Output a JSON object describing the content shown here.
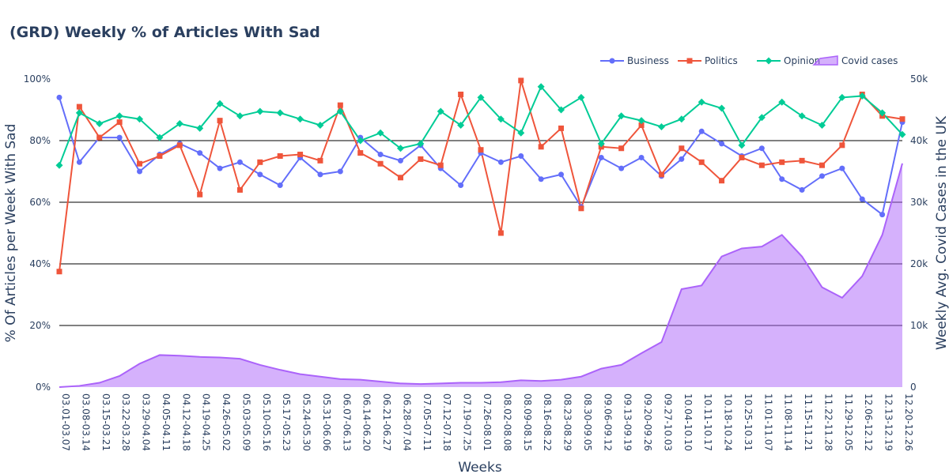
{
  "chart_data": {
    "type": "line",
    "title": "(GRD) Weekly % of Articles With Sad",
    "xlabel": "Weeks",
    "ylabel": "% Of Articles per Week With Sad",
    "y2label": "Weekly Avg. Covid Cases in the UK",
    "ylim": [
      0,
      100
    ],
    "y2lim": [
      0,
      50000
    ],
    "yticks": [
      "0%",
      "20%",
      "40%",
      "60%",
      "80%",
      "100%"
    ],
    "y2ticks": [
      "0",
      "10k",
      "20k",
      "30k",
      "40k",
      "50k"
    ],
    "legend_position": "top-right",
    "categories": [
      "03.01-03.07",
      "03.08-03.14",
      "03.15-03.21",
      "03.22-03.28",
      "03.29-04.04",
      "04.05-04.11",
      "04.12-04.18",
      "04.19-04.25",
      "04.26-05.02",
      "05.03-05.09",
      "05.10-05.16",
      "05.17-05.23",
      "05.24-05.30",
      "05.31-06.06",
      "06.07-06.13",
      "06.14-06.20",
      "06.21-06.27",
      "06.28-07.04",
      "07.05-07.11",
      "07.12-07.18",
      "07.19-07.25",
      "07.26-08.01",
      "08.02-08.08",
      "08.09-08.15",
      "08.16-08.22",
      "08.23-08.29",
      "08.30-09.05",
      "09.06-09.12",
      "09.13-09.19",
      "09.20-09.26",
      "09.27-10.03",
      "10.04-10.10",
      "10.11-10.17",
      "10.18-10.24",
      "10.25-10.31",
      "11.01-11.07",
      "11.08-11.14",
      "11.15-11.21",
      "11.22-11.28",
      "11.29-12.05",
      "12.06-12.12",
      "12.13-12.19",
      "12.20-12.26"
    ],
    "series": [
      {
        "name": "Business",
        "color": "#636efa",
        "marker": "circle",
        "axis": "y",
        "values": [
          94,
          73,
          81,
          81,
          70,
          75.5,
          79,
          76,
          71,
          73,
          69,
          65.5,
          74.5,
          69,
          70,
          81,
          75.5,
          73.5,
          78.5,
          71,
          65.5,
          76,
          73,
          75,
          67.5,
          69,
          58.5,
          74.5,
          71,
          74.5,
          68.5,
          74,
          83,
          79,
          75,
          77.5,
          67.5,
          64,
          68.5,
          71,
          61,
          56,
          86
        ]
      },
      {
        "name": "Politics",
        "color": "#ef553b",
        "marker": "square",
        "axis": "y",
        "values": [
          37.5,
          91,
          81,
          86,
          72.5,
          75,
          78.5,
          62.5,
          86.5,
          64,
          73,
          75,
          75.5,
          73.5,
          91.5,
          76,
          72.5,
          68,
          74,
          72,
          95,
          77,
          50,
          99.5,
          78,
          84,
          58,
          78,
          77.5,
          85,
          69,
          77.5,
          73,
          67,
          74.5,
          72,
          73,
          73.5,
          72,
          78.5,
          95,
          88,
          87
        ]
      },
      {
        "name": "Opinion",
        "color": "#00cc96",
        "marker": "diamond",
        "axis": "y",
        "values": [
          72,
          89,
          85.5,
          88,
          87,
          81,
          85.5,
          84,
          92,
          88,
          89.5,
          89,
          87,
          85,
          89.5,
          80,
          82.5,
          77.5,
          79,
          89.5,
          85,
          94,
          87,
          82.5,
          97.5,
          90,
          94,
          79,
          88,
          86.5,
          84.5,
          87,
          92.5,
          90.5,
          78.5,
          87.5,
          92.5,
          88,
          85,
          94,
          94.5,
          89,
          82
        ]
      },
      {
        "name": "Covid cases",
        "color": "#ab63fa",
        "type": "area",
        "axis": "y2",
        "values": [
          0,
          200,
          700,
          1800,
          3800,
          5200,
          5100,
          4900,
          4800,
          4600,
          3600,
          2800,
          2100,
          1700,
          1300,
          1200,
          900,
          600,
          500,
          600,
          700,
          700,
          800,
          1100,
          1000,
          1200,
          1700,
          3000,
          3600,
          5500,
          7300,
          15900,
          16500,
          21200,
          22500,
          22800,
          24700,
          21200,
          16200,
          14500,
          18000,
          24700,
          36300
        ]
      }
    ]
  }
}
